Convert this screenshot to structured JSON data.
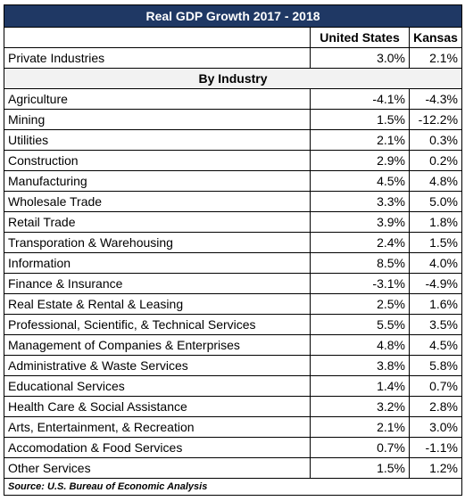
{
  "title": "Real GDP Growth 2017 - 2018",
  "header": {
    "columns": [
      "United States",
      "Kansas"
    ]
  },
  "summary": {
    "label": "Private Industries",
    "values": [
      "3.0%",
      "2.1%"
    ]
  },
  "section": "By Industry",
  "rows": [
    [
      "Agriculture",
      "-4.1%",
      "-4.3%"
    ],
    [
      "Mining",
      "1.5%",
      "-12.2%"
    ],
    [
      "Utilities",
      "2.1%",
      "0.3%"
    ],
    [
      "Construction",
      "2.9%",
      "0.2%"
    ],
    [
      "Manufacturing",
      "4.5%",
      "4.8%"
    ],
    [
      "Wholesale Trade",
      "3.3%",
      "5.0%"
    ],
    [
      "Retail Trade",
      "3.9%",
      "1.8%"
    ],
    [
      "Transporation & Warehousing",
      "2.4%",
      "1.5%"
    ],
    [
      "Information",
      "8.5%",
      "4.0%"
    ],
    [
      "Finance & Insurance",
      "-3.1%",
      "-4.9%"
    ],
    [
      "Real Estate & Rental & Leasing",
      "2.5%",
      "1.6%"
    ],
    [
      "Professional, Scientific, & Technical Services",
      "5.5%",
      "3.5%"
    ],
    [
      "Management of Companies & Enterprises",
      "4.8%",
      "4.5%"
    ],
    [
      "Administrative & Waste Services",
      "3.8%",
      "5.8%"
    ],
    [
      "Educational Services",
      "1.4%",
      "0.7%"
    ],
    [
      "Health Care & Social Assistance",
      "3.2%",
      "2.8%"
    ],
    [
      "Arts, Entertainment, & Recreation",
      "2.1%",
      "3.0%"
    ],
    [
      "Accomodation & Food Services",
      "0.7%",
      "-1.1%"
    ],
    [
      "Other Services",
      "1.5%",
      "1.2%"
    ]
  ],
  "source": "Source: U.S. Bureau of Economic Analysis"
}
